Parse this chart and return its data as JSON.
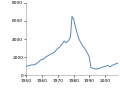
{
  "line_color": "#5588bb",
  "background_color": "#ffffff",
  "xlim": [
    1950,
    2008
  ],
  "ylim": [
    0,
    8000
  ],
  "yticks": [
    0,
    2000,
    4000,
    6000,
    8000
  ],
  "xticks": [
    1950,
    1960,
    1970,
    1980,
    1990,
    2000
  ],
  "gdp_data": {
    "years": [
      1950,
      1951,
      1952,
      1953,
      1954,
      1955,
      1956,
      1957,
      1958,
      1959,
      1960,
      1961,
      1962,
      1963,
      1964,
      1965,
      1966,
      1967,
      1968,
      1969,
      1970,
      1971,
      1972,
      1973,
      1974,
      1975,
      1976,
      1977,
      1978,
      1979,
      1980,
      1981,
      1982,
      1983,
      1984,
      1985,
      1986,
      1987,
      1988,
      1989,
      1990,
      1991,
      1992,
      1993,
      1994,
      1995,
      1996,
      1997,
      1998,
      1999,
      2000,
      2001,
      2002,
      2003,
      2004,
      2005,
      2006,
      2007,
      2008
    ],
    "values": [
      1000,
      1050,
      1100,
      1150,
      1150,
      1200,
      1250,
      1400,
      1500,
      1700,
      1750,
      1800,
      2000,
      2100,
      2200,
      2300,
      2400,
      2450,
      2600,
      2800,
      3000,
      3100,
      3300,
      3500,
      3800,
      3600,
      3700,
      3900,
      4200,
      6500,
      6200,
      5500,
      4800,
      4200,
      3800,
      3500,
      3200,
      3000,
      2700,
      2400,
      2000,
      900,
      800,
      750,
      700,
      720,
      750,
      800,
      900,
      950,
      1000,
      1050,
      1100,
      950,
      1050,
      1150,
      1200,
      1300,
      1350
    ]
  }
}
